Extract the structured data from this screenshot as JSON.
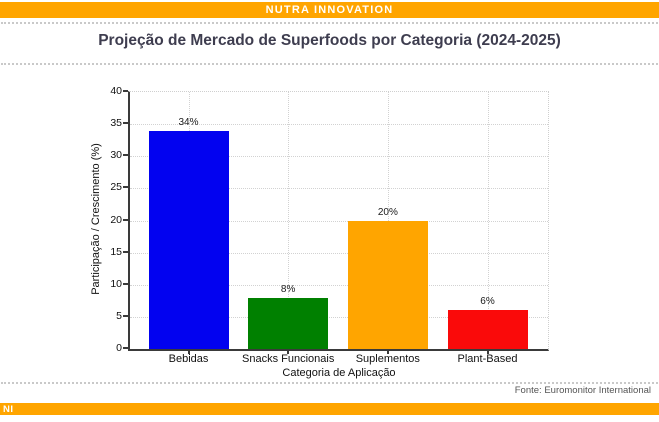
{
  "header": {
    "brand": "NUTRA INNOVATION",
    "accent_color": "#FFA500"
  },
  "title": "Projeção de Mercado de Superfoods por Categoria (2024-2025)",
  "source": {
    "text": "Fonte: Euromonitor International"
  },
  "footer": {
    "brand_abbrev": "NI",
    "accent_color": "#FFA500"
  },
  "chart_data": {
    "type": "bar",
    "title": "Projeção de Mercado de Superfoods por Categoria (2024-2025)",
    "categories": [
      "Bebidas",
      "Snacks Funcionais",
      "Suplementos",
      "Plant-Based"
    ],
    "values": [
      34,
      8,
      20,
      6
    ],
    "value_labels": [
      "34%",
      "8%",
      "20%",
      "6%"
    ],
    "bar_colors": [
      "#0202F0",
      "#008000",
      "#FFA500",
      "#FA0A0A"
    ],
    "xlabel": "Categoria de Aplicação",
    "ylabel": "Participação / Crescimento (%)",
    "ylim": [
      0,
      40
    ],
    "yticks": [
      0,
      5,
      10,
      15,
      20,
      25,
      30,
      35,
      40
    ],
    "grid": true,
    "grid_style": "dotted",
    "legend_position": "none"
  }
}
